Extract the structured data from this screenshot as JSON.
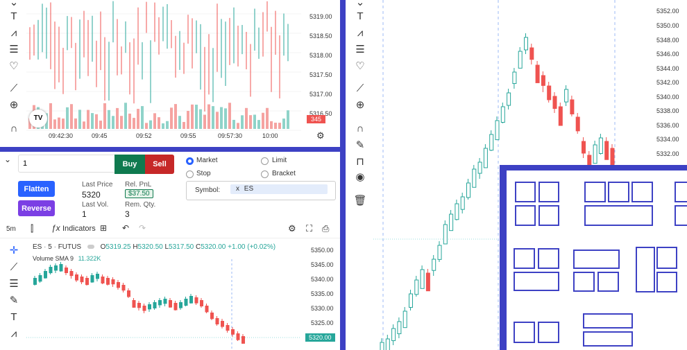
{
  "top_chart": {
    "price_labels": [
      "5319.00",
      "5318.50",
      "5318.00",
      "5317.50",
      "5317.00",
      "5316.50"
    ],
    "time_labels": [
      "09:42:30",
      "09:45",
      "09:52",
      "09:55",
      "09:57:30",
      "10:00"
    ],
    "volume_badge": "345",
    "logo": "TV"
  },
  "order_panel": {
    "quantity": "1",
    "buy_label": "Buy",
    "sell_label": "Sell",
    "order_types": [
      "Market",
      "Limit",
      "Stop",
      "Bracket"
    ],
    "selected_type": "Market",
    "flatten_label": "Flatten",
    "reverse_label": "Reverse",
    "last_price_label": "Last Price",
    "last_price": "5320",
    "rel_pnl_label": "Rel. PnL",
    "rel_pnl": "$37.50",
    "last_vol_label": "Last Vol.",
    "last_vol": "1",
    "rem_qty_label": "Rem. Qty.",
    "rem_qty": "3",
    "symbol_label": "Symbol:",
    "symbol_tag": "ES",
    "symbol_remove": "x"
  },
  "bottom_toolbar": {
    "timeframe": "5m",
    "indicators_label": "Indicators"
  },
  "bottom_chart": {
    "symbol": "ES",
    "interval": "5",
    "exchange": "FUTUS",
    "open_label": "O",
    "open": "5319.25",
    "high_label": "H",
    "high": "5320.50",
    "low_label": "L",
    "low": "5317.50",
    "close_label": "C",
    "close": "5320.00",
    "change": "+1.00 (+0.02%)",
    "volume_label": "Volume SMA 9",
    "volume_value": "11.322K",
    "price_labels": [
      "5350.00",
      "5345.00",
      "5340.00",
      "5335.00",
      "5330.00",
      "5325.00"
    ],
    "current_price": "5320.00"
  },
  "right_chart": {
    "price_labels": [
      "5352.00",
      "5350.00",
      "5348.00",
      "5346.00",
      "5344.00",
      "5342.00",
      "5340.00",
      "5338.00",
      "5336.00",
      "5334.00",
      "5332.00"
    ]
  },
  "colors": {
    "up": "#26a69a",
    "down": "#ef5350",
    "accent": "#2962ff",
    "divider": "#3d41c4",
    "buy": "#0f7a4f",
    "sell": "#c62828"
  }
}
